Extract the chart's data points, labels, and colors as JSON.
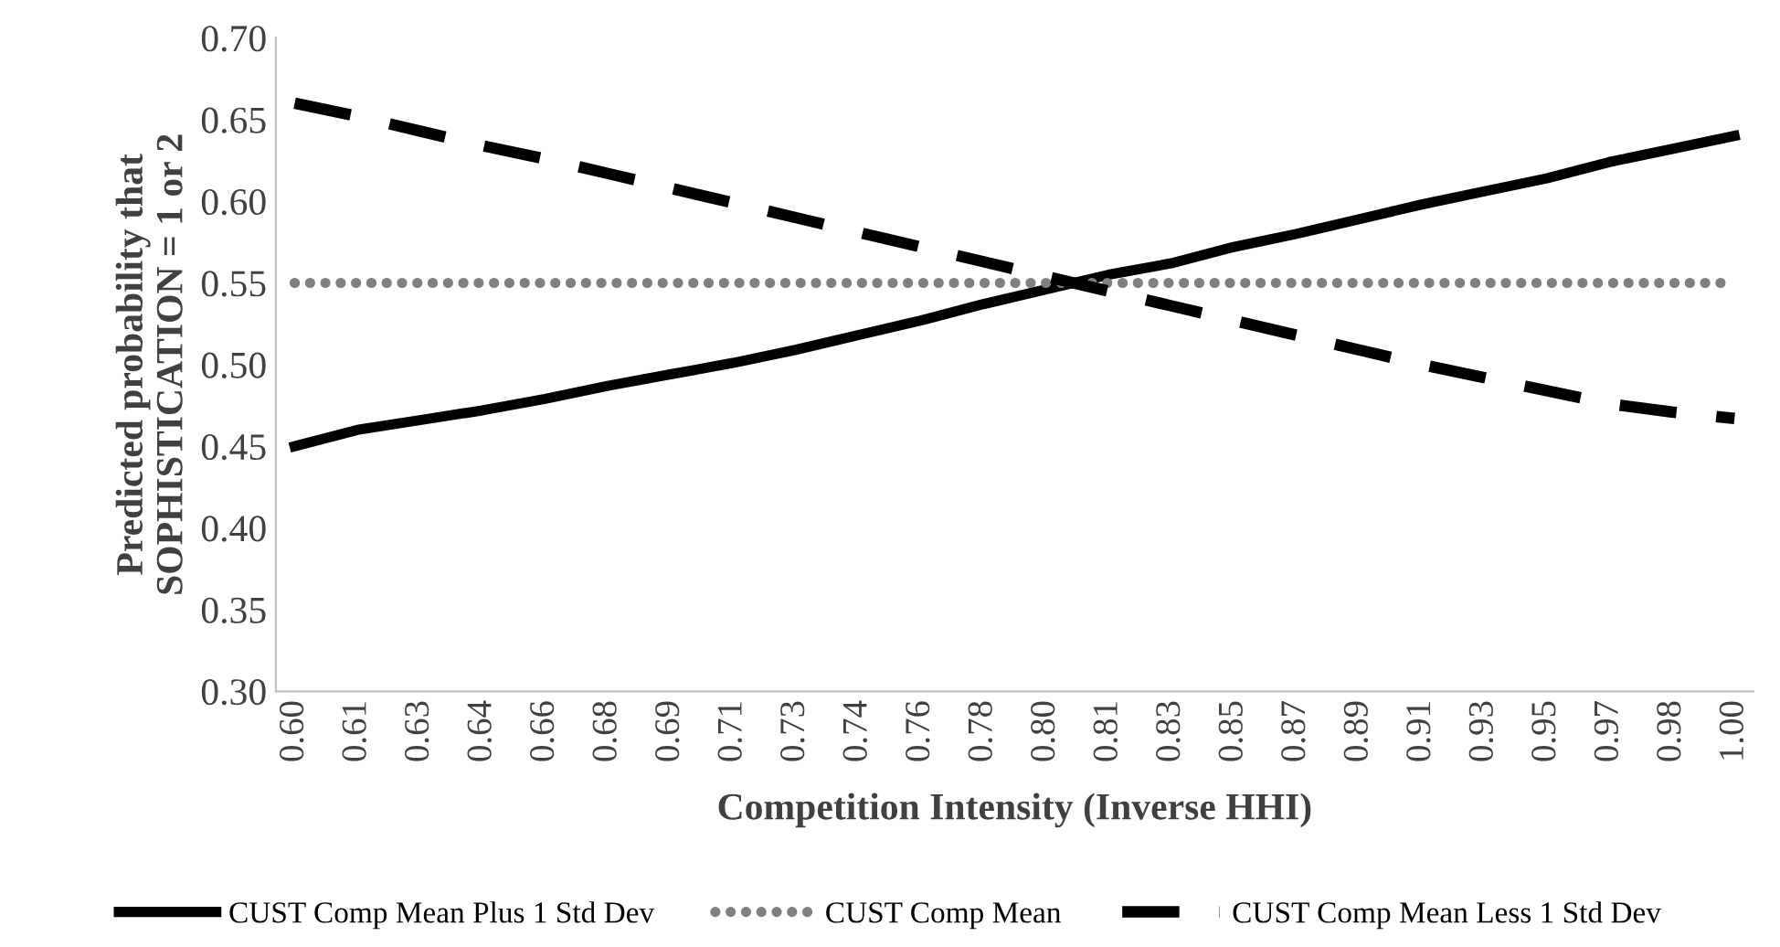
{
  "chart_data": {
    "type": "line",
    "xlabel": "Competition Intensity (Inverse HHI)",
    "ylabel": "Predicted probability that\nSOPHISTICATION = 1 or 2",
    "categories": [
      "0.60",
      "0.61",
      "0.63",
      "0.64",
      "0.66",
      "0.68",
      "0.69",
      "0.71",
      "0.73",
      "0.74",
      "0.76",
      "0.78",
      "0.80",
      "0.81",
      "0.83",
      "0.85",
      "0.87",
      "0.89",
      "0.91",
      "0.93",
      "0.95",
      "0.97",
      "0.98",
      "1.00"
    ],
    "series": [
      {
        "name": "CUST Comp Mean Plus 1 Std Dev",
        "color": "#000000",
        "line_style": "solid",
        "values": [
          0.45,
          0.46,
          0.466,
          0.472,
          0.479,
          0.487,
          0.494,
          0.501,
          0.509,
          0.518,
          0.527,
          0.537,
          0.546,
          0.555,
          0.562,
          0.572,
          0.58,
          0.589,
          0.598,
          0.606,
          0.614,
          0.624,
          0.632,
          0.64
        ]
      },
      {
        "name": "CUST Comp Mean",
        "color": "#808080",
        "line_style": "dotted",
        "values": [
          0.55,
          0.55,
          0.55,
          0.55,
          0.55,
          0.55,
          0.55,
          0.55,
          0.55,
          0.55,
          0.55,
          0.55,
          0.55,
          0.55,
          0.55,
          0.55,
          0.55,
          0.55,
          0.55,
          0.55,
          0.55,
          0.55,
          0.55,
          0.55
        ]
      },
      {
        "name": "CUST Comp Mean Less 1 Std Dev",
        "color": "#000000",
        "line_style": "dashed",
        "values": [
          0.66,
          0.652,
          0.643,
          0.634,
          0.626,
          0.617,
          0.608,
          0.599,
          0.59,
          0.581,
          0.572,
          0.563,
          0.554,
          0.545,
          0.536,
          0.527,
          0.518,
          0.509,
          0.5,
          0.492,
          0.484,
          0.476,
          0.471,
          0.467
        ]
      }
    ],
    "ylim": [
      0.3,
      0.7
    ],
    "yticks": [
      {
        "value": 0.3,
        "label": "0.30"
      },
      {
        "value": 0.35,
        "label": "0.35"
      },
      {
        "value": 0.4,
        "label": "0.40"
      },
      {
        "value": 0.45,
        "label": "0.45"
      },
      {
        "value": 0.5,
        "label": "0.50"
      },
      {
        "value": 0.55,
        "label": "0.55"
      },
      {
        "value": 0.6,
        "label": "0.60"
      },
      {
        "value": 0.65,
        "label": "0.65"
      },
      {
        "value": 0.7,
        "label": "0.70"
      }
    ],
    "grid": false,
    "legend": "bottom",
    "marker": "none"
  }
}
